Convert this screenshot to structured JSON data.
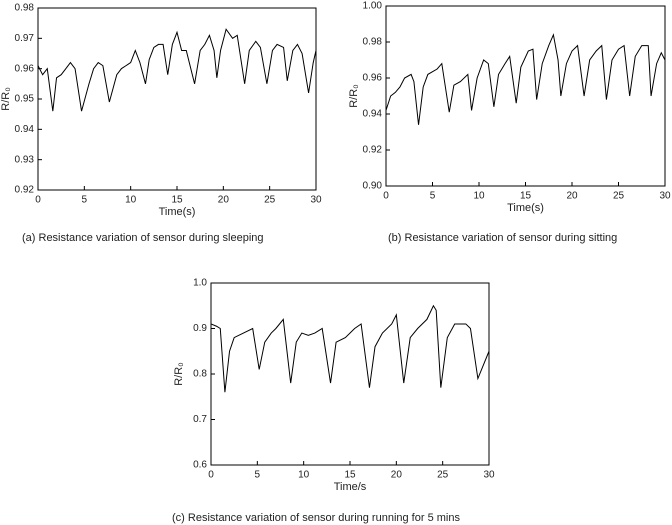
{
  "chart_data": [
    {
      "type": "line",
      "caption": "(a) Resistance variation of sensor during sleeping",
      "x_label": "Time(s)",
      "y_label": "R/R₀",
      "color": "#000000",
      "xlim": [
        0,
        30
      ],
      "ylim": [
        0.92,
        0.98
      ],
      "xticks": [
        0,
        5,
        10,
        15,
        20,
        25,
        30
      ],
      "yticks": [
        0.92,
        0.93,
        0.94,
        0.95,
        0.96,
        0.97,
        0.98
      ],
      "x": [
        0,
        0.5,
        1,
        1.6,
        2,
        2.5,
        3,
        3.5,
        4,
        4.7,
        5.5,
        6,
        6.5,
        7,
        7.7,
        8.5,
        9,
        9.5,
        10,
        10.5,
        11,
        11.6,
        12,
        12.5,
        13,
        13.5,
        14,
        14.5,
        15,
        15.5,
        16,
        16.9,
        17.5,
        18,
        18.5,
        19,
        19.3,
        19.7,
        20.3,
        21,
        21.5,
        22.3,
        22.8,
        23.5,
        24,
        24.7,
        25.3,
        25.8,
        26.5,
        26.9,
        27.5,
        28,
        28.5,
        29.2,
        29.7,
        30
      ],
      "values": [
        0.961,
        0.958,
        0.96,
        0.946,
        0.957,
        0.958,
        0.96,
        0.962,
        0.96,
        0.946,
        0.955,
        0.96,
        0.962,
        0.961,
        0.949,
        0.958,
        0.96,
        0.961,
        0.962,
        0.966,
        0.962,
        0.955,
        0.963,
        0.967,
        0.968,
        0.968,
        0.958,
        0.968,
        0.972,
        0.966,
        0.966,
        0.955,
        0.966,
        0.968,
        0.971,
        0.966,
        0.957,
        0.966,
        0.973,
        0.97,
        0.971,
        0.955,
        0.966,
        0.969,
        0.967,
        0.955,
        0.966,
        0.968,
        0.967,
        0.956,
        0.966,
        0.968,
        0.965,
        0.952,
        0.962,
        0.966
      ]
    },
    {
      "type": "line",
      "caption": "(b) Resistance variation of sensor during sitting",
      "x_label": "Time(s)",
      "y_label": "R/R₀",
      "color": "#000000",
      "xlim": [
        0,
        30
      ],
      "ylim": [
        0.9,
        1.0
      ],
      "xticks": [
        0,
        5,
        10,
        15,
        20,
        25,
        30
      ],
      "yticks": [
        {
          "value": 0.9,
          "label": "0.90"
        },
        0.92,
        0.94,
        0.96,
        0.98,
        {
          "value": 1.0,
          "label": "1.00"
        }
      ],
      "x": [
        0,
        0.5,
        1,
        1.5,
        2,
        2.7,
        3,
        3.5,
        4,
        4.5,
        5.5,
        6,
        6.8,
        7.3,
        8,
        8.8,
        9.2,
        9.8,
        10.5,
        11,
        11.6,
        12.1,
        12.8,
        13.3,
        14,
        14.5,
        15.3,
        15.8,
        16.2,
        16.8,
        17.5,
        18,
        18.5,
        18.8,
        19.4,
        20,
        20.6,
        21.3,
        21.9,
        22.6,
        23.2,
        23.7,
        24.3,
        25,
        25.6,
        26.2,
        26.8,
        27.5,
        28.2,
        28.5,
        29.1,
        29.6,
        30
      ],
      "values": [
        0.942,
        0.95,
        0.952,
        0.955,
        0.96,
        0.962,
        0.958,
        0.934,
        0.955,
        0.962,
        0.965,
        0.968,
        0.941,
        0.956,
        0.958,
        0.962,
        0.942,
        0.96,
        0.97,
        0.968,
        0.944,
        0.962,
        0.968,
        0.972,
        0.946,
        0.966,
        0.975,
        0.976,
        0.948,
        0.968,
        0.978,
        0.984,
        0.97,
        0.95,
        0.968,
        0.975,
        0.978,
        0.95,
        0.97,
        0.975,
        0.978,
        0.948,
        0.97,
        0.976,
        0.978,
        0.95,
        0.972,
        0.978,
        0.978,
        0.95,
        0.968,
        0.974,
        0.97
      ]
    },
    {
      "type": "line",
      "caption": "(c) Resistance variation of sensor during running for 5 mins",
      "x_label": "Time/s",
      "y_label": "R/R₀",
      "color": "#000000",
      "xlim": [
        0,
        30
      ],
      "ylim": [
        0.6,
        1.0
      ],
      "xticks": [
        0,
        5,
        10,
        15,
        20,
        25,
        30
      ],
      "yticks": [
        0.6,
        0.7,
        0.8,
        0.9,
        {
          "value": 1.0,
          "label": "1.0"
        }
      ],
      "x": [
        0,
        0.6,
        1,
        1.5,
        2,
        2.5,
        3.5,
        4.5,
        5.2,
        5.8,
        6.5,
        7,
        7.8,
        8.6,
        9.2,
        9.8,
        10.5,
        11.2,
        12,
        12.9,
        13.5,
        14.5,
        15.5,
        16.2,
        17.1,
        17.7,
        18.5,
        19.5,
        20,
        20.8,
        21.5,
        22.3,
        23.3,
        24,
        24.3,
        24.8,
        25.5,
        26.3,
        27.5,
        28,
        28.8,
        30
      ],
      "values": [
        0.91,
        0.905,
        0.9,
        0.76,
        0.85,
        0.88,
        0.89,
        0.9,
        0.81,
        0.87,
        0.89,
        0.9,
        0.92,
        0.78,
        0.87,
        0.89,
        0.885,
        0.89,
        0.9,
        0.78,
        0.87,
        0.88,
        0.9,
        0.91,
        0.77,
        0.86,
        0.89,
        0.91,
        0.93,
        0.78,
        0.88,
        0.9,
        0.92,
        0.95,
        0.94,
        0.77,
        0.88,
        0.91,
        0.91,
        0.9,
        0.79,
        0.85
      ]
    }
  ]
}
